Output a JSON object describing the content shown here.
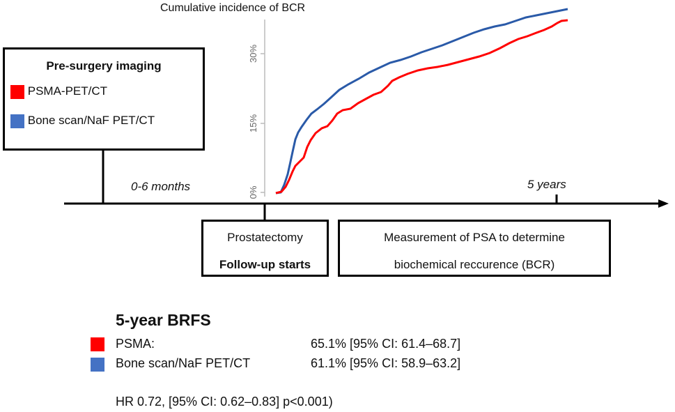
{
  "chart": {
    "title": "Cumulative incidence of BCR",
    "y_ticks": [
      "0%",
      "15%",
      "30%"
    ]
  },
  "imaging_box": {
    "title": "Pre-surgery imaging",
    "items": [
      {
        "label": "PSMA-PET/CT",
        "color": "#ff0000"
      },
      {
        "label": "Bone scan/NaF PET/CT",
        "color": "#4472c4"
      }
    ]
  },
  "timeline": {
    "label_0_6": "0-6 months",
    "label_5y": "5 years"
  },
  "prostatectomy_box": {
    "line1": "Prostatectomy",
    "line2": "Follow-up starts"
  },
  "psa_box": {
    "line1": "Measurement of PSA to determine",
    "line2": "biochemical reccurence (BCR)"
  },
  "brfs": {
    "title": "5-year BRFS",
    "rows": [
      {
        "label": "PSMA:",
        "value": "65.1% [95% CI: 61.4–68.7]",
        "color": "#ff0000"
      },
      {
        "label": "Bone scan/NaF PET/CT",
        "value": "61.1% [95% CI: 58.9–63.2]",
        "color": "#4472c4"
      }
    ],
    "hr": "HR 0.72, [95% CI: 0.62–0.83] p<0.001)"
  },
  "curves": {
    "psma_color": "#ff0000",
    "bone_color": "#2a5aa8"
  }
}
